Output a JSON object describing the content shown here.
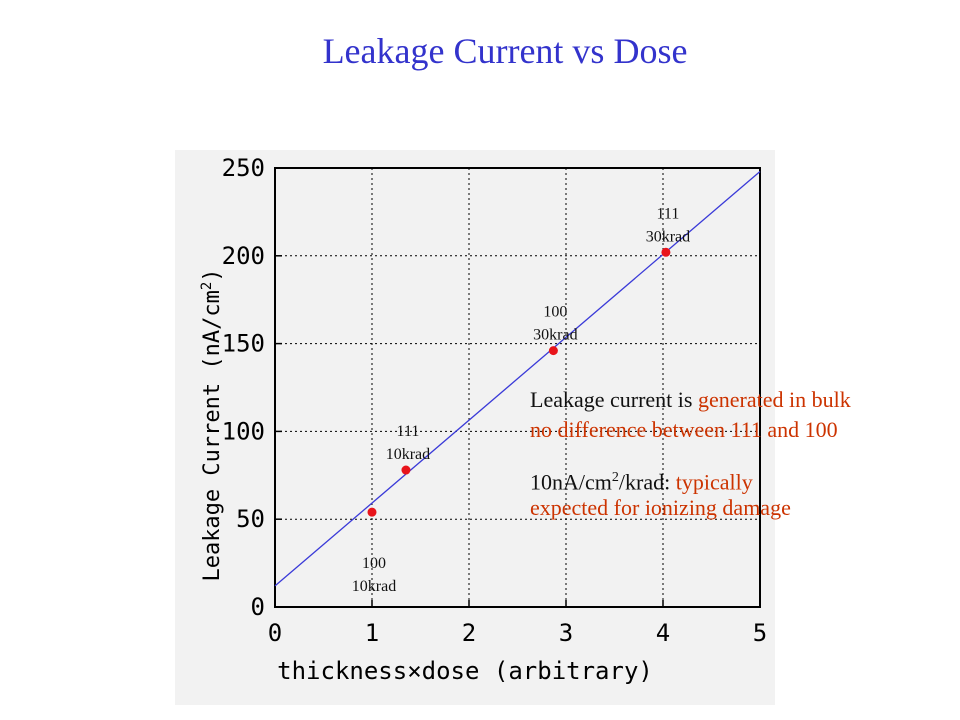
{
  "title": "Leakage Current vs Dose",
  "chart_data": {
    "type": "scatter",
    "title": "",
    "xlabel": "thickness×dose (arbitrary)",
    "ylabel": "Leakage Current (nA/cm²)",
    "ylabel_parts": {
      "main": "Leakage Current (nA/cm",
      "sup": "2",
      "close": ")"
    },
    "xlim": [
      0,
      5
    ],
    "ylim": [
      0,
      250
    ],
    "x_ticks": [
      0,
      1,
      2,
      3,
      4,
      5
    ],
    "y_ticks": [
      0,
      50,
      100,
      150,
      200,
      250
    ],
    "grid": true,
    "points": [
      {
        "x": 1.0,
        "y": 54,
        "label_line1": "100",
        "label_line2": "10krad"
      },
      {
        "x": 1.35,
        "y": 78,
        "label_line1": "111",
        "label_line2": "10krad"
      },
      {
        "x": 2.87,
        "y": 146,
        "label_line1": "100",
        "label_line2": "30krad"
      },
      {
        "x": 4.03,
        "y": 202,
        "label_line1": "111",
        "label_line2": "30krad"
      }
    ],
    "fit_line": {
      "x": [
        0,
        5
      ],
      "y": [
        12,
        248
      ]
    },
    "colors": {
      "points": "#e8141b",
      "line": "#3a3ad8",
      "axis": "#000000",
      "grid": "#000000"
    }
  },
  "annotations": {
    "line1_black": "Leakage current is ",
    "line1_red": "generated in bulk",
    "line2_red": "no difference between 111 and 100",
    "line3_black_a": "10nA/cm",
    "line3_sup": "2",
    "line3_black_b": "/krad: ",
    "line3_red": "typically",
    "line4_red": "expected for ionizing damage"
  }
}
